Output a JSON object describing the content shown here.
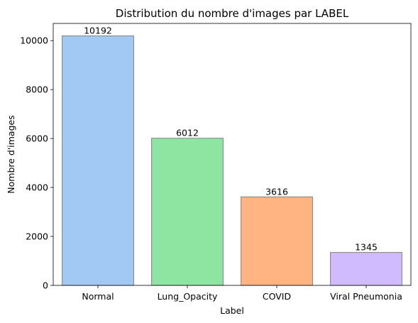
{
  "chart_data": {
    "type": "bar",
    "title": "Distribution du nombre d'images par LABEL",
    "xlabel": "Label",
    "ylabel": "Nombre d'images",
    "categories": [
      "Normal",
      "Lung_Opacity",
      "COVID",
      "Viral Pneumonia"
    ],
    "values": [
      10192,
      6012,
      3616,
      1345
    ],
    "data_labels": [
      "10192",
      "6012",
      "3616",
      "1345"
    ],
    "colors": [
      "#a1c9f4",
      "#8de5a1",
      "#ffb482",
      "#d0bbff"
    ],
    "edge_color": "#808080",
    "ylim": [
      0,
      10702
    ],
    "yticks": [
      0,
      2000,
      4000,
      6000,
      8000,
      10000
    ],
    "ytick_labels": [
      "0",
      "2000",
      "4000",
      "6000",
      "8000",
      "10000"
    ],
    "grid": false,
    "legend": "none"
  }
}
